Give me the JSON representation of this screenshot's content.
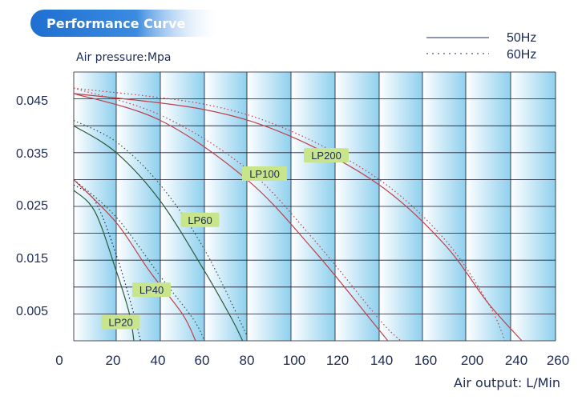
{
  "header": {
    "title": "Performance Curve"
  },
  "chart_data": {
    "type": "line",
    "title": "Performance Curve",
    "ylabel": "Air pressure:Mpa",
    "xlabel": "Air output: L/Min",
    "x_ticks": [
      "0",
      "20",
      "40",
      "60",
      "80",
      "100",
      "120",
      "140",
      "160",
      "200",
      "240",
      "260"
    ],
    "y_ticks": [
      "0.045",
      "0.035",
      "0.025",
      "0.015",
      "0.005"
    ],
    "legend": [
      {
        "label": "50Hz",
        "style": "solid"
      },
      {
        "label": "60Hz",
        "style": "dotted"
      }
    ],
    "legend_position": "top-right",
    "grid": true,
    "colors": {
      "banner": "#1e6fd0",
      "banner_fade": "#ffffff",
      "stripe_light": "#ffffff",
      "stripe_dark": "#8fd0ee",
      "grid": "#1a1a2e",
      "label_fill": "#c9e58c",
      "dark_green": "#2b5a3a",
      "red": "#c0404a",
      "navy": "#1c2a55"
    },
    "series": [
      {
        "model": "LP20",
        "hz": "50Hz",
        "color": "dark_green",
        "style": "solid",
        "points": [
          [
            0,
            0.028
          ],
          [
            10,
            0.024
          ],
          [
            20,
            0.013
          ],
          [
            26,
            0.005
          ],
          [
            28,
            0.0
          ]
        ]
      },
      {
        "model": "LP20",
        "hz": "60Hz",
        "color": "navy",
        "style": "dotted",
        "points": [
          [
            0,
            0.029
          ],
          [
            10,
            0.026
          ],
          [
            20,
            0.016
          ],
          [
            28,
            0.005
          ],
          [
            31,
            0.0
          ]
        ]
      },
      {
        "model": "LP40",
        "hz": "50Hz",
        "color": "red",
        "style": "solid",
        "points": [
          [
            0,
            0.03
          ],
          [
            20,
            0.022
          ],
          [
            35,
            0.013
          ],
          [
            50,
            0.005
          ],
          [
            56,
            0.0
          ]
        ]
      },
      {
        "model": "LP40",
        "hz": "60Hz",
        "color": "dark_green",
        "style": "dotted",
        "points": [
          [
            0,
            0.03
          ],
          [
            20,
            0.023
          ],
          [
            40,
            0.012
          ],
          [
            55,
            0.004
          ],
          [
            60,
            0.0
          ]
        ]
      },
      {
        "model": "LP60",
        "hz": "50Hz",
        "color": "dark_green",
        "style": "solid",
        "points": [
          [
            0,
            0.04
          ],
          [
            20,
            0.035
          ],
          [
            40,
            0.026
          ],
          [
            60,
            0.013
          ],
          [
            73,
            0.004
          ],
          [
            78,
            0.0
          ]
        ]
      },
      {
        "model": "LP60",
        "hz": "60Hz",
        "color": "dark_green",
        "style": "dotted",
        "points": [
          [
            0,
            0.041
          ],
          [
            20,
            0.037
          ],
          [
            40,
            0.029
          ],
          [
            60,
            0.017
          ],
          [
            80,
            0.001
          ]
        ]
      },
      {
        "model": "LP100",
        "hz": "50Hz",
        "color": "red",
        "style": "solid",
        "points": [
          [
            0,
            0.046
          ],
          [
            40,
            0.041
          ],
          [
            80,
            0.03
          ],
          [
            110,
            0.017
          ],
          [
            140,
            0.002
          ],
          [
            144,
            0.0
          ]
        ]
      },
      {
        "model": "LP100",
        "hz": "60Hz",
        "color": "red",
        "style": "dotted",
        "points": [
          [
            0,
            0.047
          ],
          [
            40,
            0.042
          ],
          [
            80,
            0.032
          ],
          [
            110,
            0.019
          ],
          [
            140,
            0.004
          ],
          [
            150,
            0.0
          ]
        ]
      },
      {
        "model": "LP200",
        "hz": "50Hz",
        "color": "red",
        "style": "solid",
        "points": [
          [
            0,
            0.046
          ],
          [
            60,
            0.043
          ],
          [
            100,
            0.038
          ],
          [
            140,
            0.029
          ],
          [
            180,
            0.018
          ],
          [
            220,
            0.007
          ],
          [
            245,
            0.0
          ]
        ]
      },
      {
        "model": "LP200",
        "hz": "60Hz",
        "color": "red",
        "style": "dotted",
        "points": [
          [
            0,
            0.047
          ],
          [
            60,
            0.044
          ],
          [
            100,
            0.039
          ],
          [
            140,
            0.03
          ],
          [
            180,
            0.019
          ],
          [
            220,
            0.007
          ],
          [
            235,
            0.0
          ]
        ]
      }
    ],
    "labels": [
      {
        "text": "LP20",
        "x": 22,
        "y": 0.0035
      },
      {
        "text": "LP40",
        "x": 36,
        "y": 0.0095
      },
      {
        "text": "LP60",
        "x": 58,
        "y": 0.0225
      },
      {
        "text": "LP100",
        "x": 88,
        "y": 0.0311
      },
      {
        "text": "LP200",
        "x": 116,
        "y": 0.0345
      }
    ]
  }
}
